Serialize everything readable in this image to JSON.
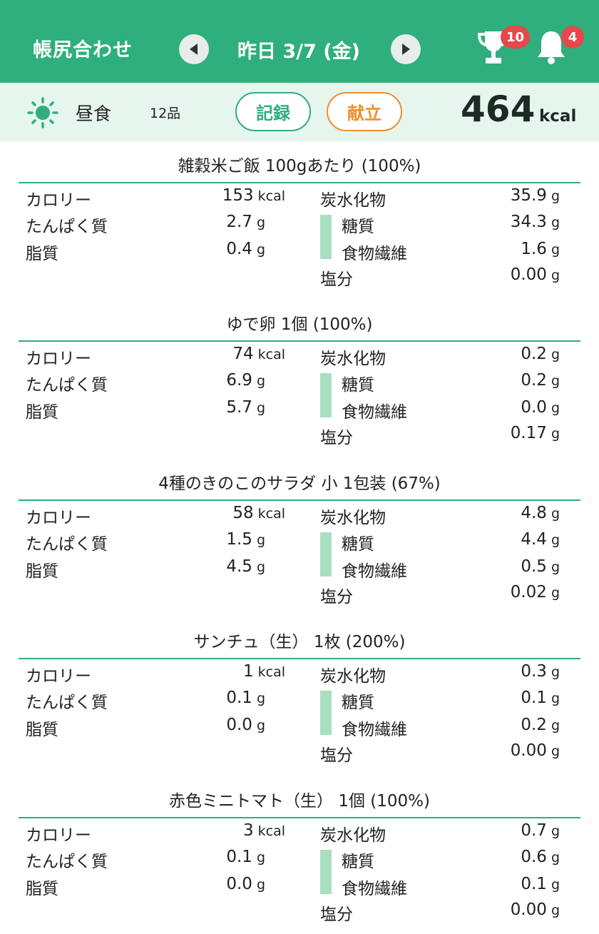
{
  "header": {
    "app_title": "帳尻合わせ",
    "date": "昨日 3/7 (金)",
    "trophy_count": "10",
    "bell_count": "4",
    "accent_color": "#2eaf7d",
    "icons": [
      "chevron-left-icon",
      "chevron-right-icon",
      "trophy-icon",
      "bell-icon"
    ]
  },
  "meal": {
    "name": "昼食",
    "count": "12品",
    "record_button": "記録",
    "menu_button": "献立",
    "total_kcal": "464",
    "kcal_unit": "kcal",
    "icon": "sun-icon"
  },
  "labels": {
    "calorie": "カロリー",
    "protein": "たんぱく質",
    "fat": "脂質",
    "carbs": "炭水化物",
    "sugar": "糖質",
    "fiber": "食物繊維",
    "salt": "塩分",
    "kcal": "kcal",
    "g": "g"
  },
  "foods": [
    {
      "title": "雑穀米ご飯 100gあたり (100%)",
      "calories": "153",
      "protein": "2.7",
      "fat": "0.4",
      "carbs": "35.9",
      "sugar": "34.3",
      "fiber": "1.6",
      "salt": "0.00"
    },
    {
      "title": "ゆで卵 1個 (100%)",
      "calories": "74",
      "protein": "6.9",
      "fat": "5.7",
      "carbs": "0.2",
      "sugar": "0.2",
      "fiber": "0.0",
      "salt": "0.17"
    },
    {
      "title": "4種のきのこのサラダ 小 1包装 (67%)",
      "calories": "58",
      "protein": "1.5",
      "fat": "4.5",
      "carbs": "4.8",
      "sugar": "4.4",
      "fiber": "0.5",
      "salt": "0.02"
    },
    {
      "title": "サンチュ（生） 1枚 (200%)",
      "calories": "1",
      "protein": "0.1",
      "fat": "0.0",
      "carbs": "0.3",
      "sugar": "0.1",
      "fiber": "0.2",
      "salt": "0.00"
    },
    {
      "title": "赤色ミニトマト（生） 1個 (100%)",
      "calories": "3",
      "protein": "0.1",
      "fat": "0.0",
      "carbs": "0.7",
      "sugar": "0.6",
      "fiber": "0.1",
      "salt": "0.00"
    }
  ]
}
